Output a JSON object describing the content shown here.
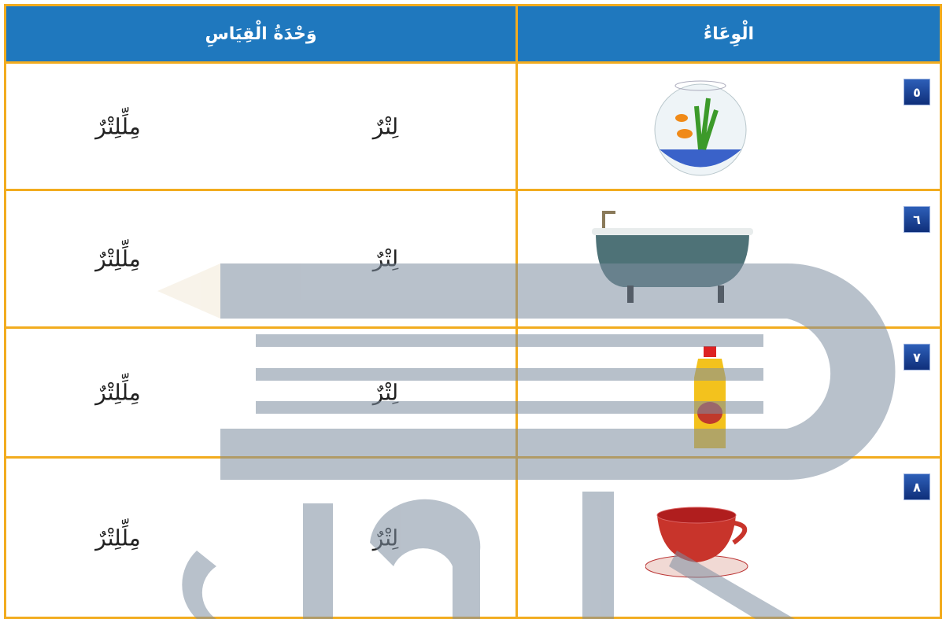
{
  "header": {
    "container": "الْوِعَاءُ",
    "unit": "وَحْدَةُ الْقِيَاسِ"
  },
  "rows": [
    {
      "number": "٥",
      "units": [
        "لِتْرٌ",
        "مِلِّلِتْرٌ"
      ]
    },
    {
      "number": "٦",
      "units": [
        "لِتْرٌ",
        "مِلِّلِتْرٌ"
      ]
    },
    {
      "number": "٧",
      "units": [
        "لِتْرٌ",
        "مِلِّلِتْرٌ"
      ]
    },
    {
      "number": "٨",
      "units": [
        "لِتْرٌ",
        "مِلِّلِتْرٌ"
      ]
    }
  ]
}
